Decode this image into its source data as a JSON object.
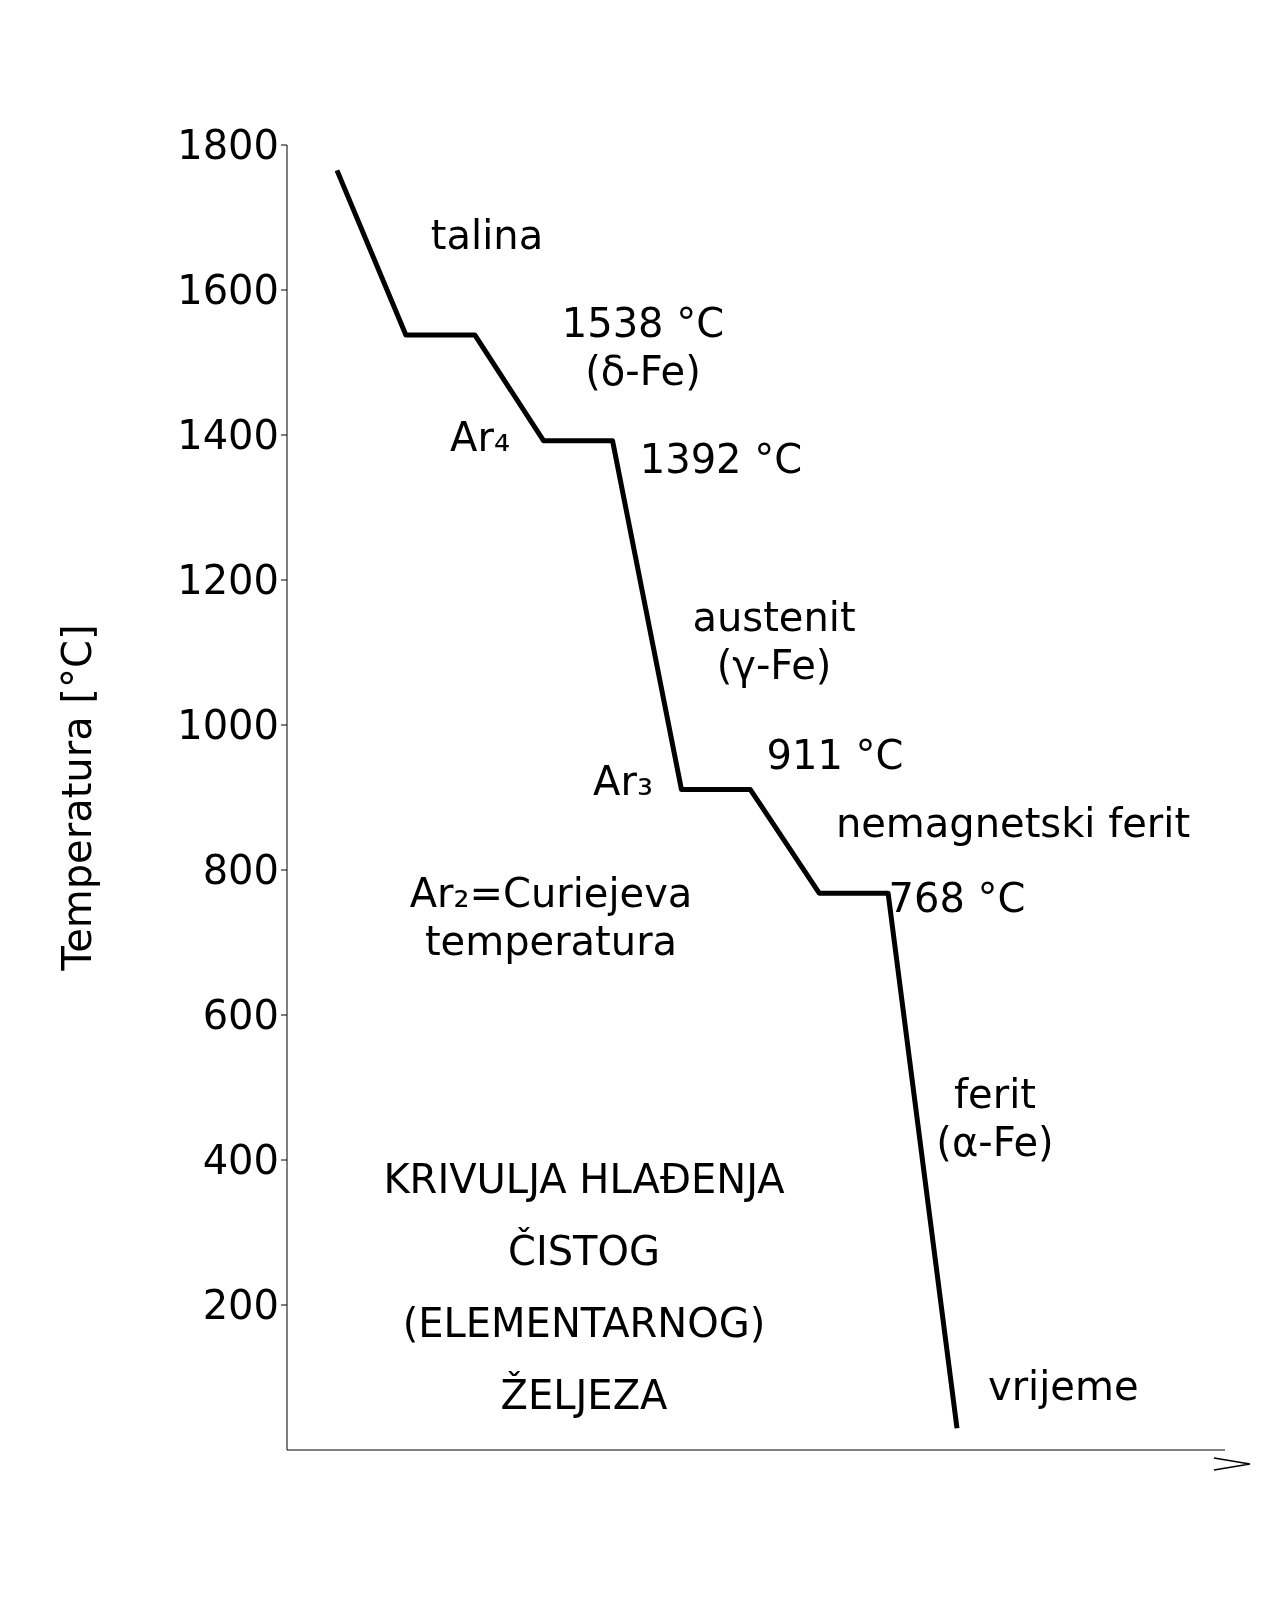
{
  "chart_data": {
    "type": "line",
    "title": "KRIVULJA HLAĐENJA\nČISTOG\n(ELEMENTARNOG)\nŽELJEZA",
    "xlabel": "vrijeme",
    "ylabel": "Temperatura   [°C]",
    "categories": [
      null,
      null,
      null,
      null,
      null,
      null,
      null,
      null,
      null,
      null
    ],
    "series": [
      {
        "color": "#000000",
        "values": [
          1765,
          1538,
          1538,
          1392,
          1392,
          911,
          911,
          768,
          768,
          30
        ]
      }
    ],
    "ylim": [
      0,
      1800
    ],
    "yticks": [
      200,
      400,
      600,
      800,
      1000,
      1200,
      1400,
      1600,
      1800
    ],
    "tick_labels": "y",
    "legend": false,
    "annotations": [
      "talina",
      "1538 °C\n(δ-Fe)",
      "Ar₄",
      "1392 °C",
      "austenit\n(γ-Fe)",
      "Ar₃",
      "911 °C",
      "nemagnetski ferit",
      "768 °C",
      "Ar₂=Curiejeva\ntemperatura",
      "ferit\n(α-Fe)"
    ]
  }
}
